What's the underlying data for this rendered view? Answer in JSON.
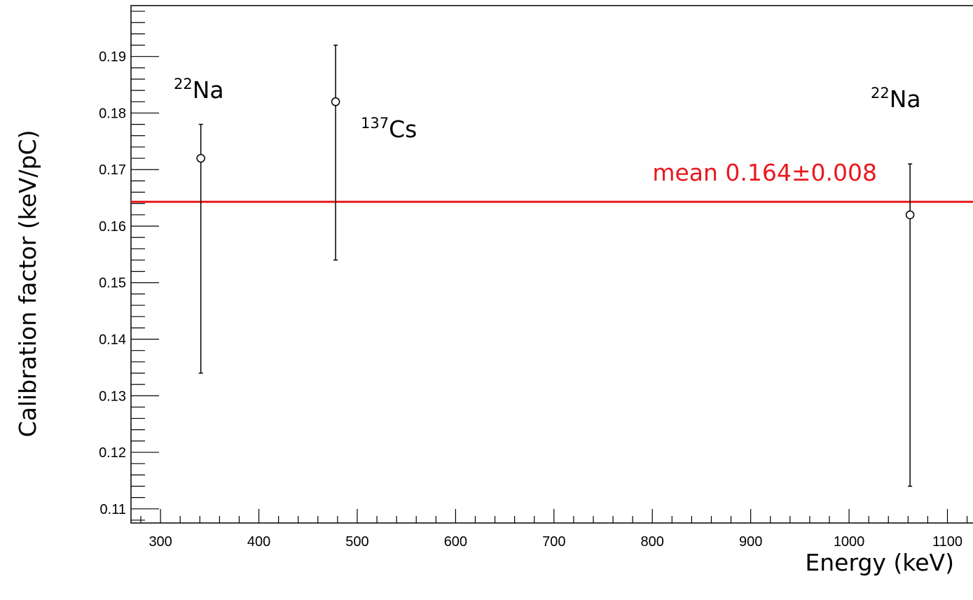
{
  "chart_data": {
    "type": "scatter",
    "xlabel": "Energy (keV)",
    "ylabel": "Calibration factor (keV/pC)",
    "xlim": [
      270,
      1126
    ],
    "ylim": [
      0.1075,
      0.199
    ],
    "x_ticks": [
      300,
      400,
      500,
      600,
      700,
      800,
      900,
      1000,
      1100
    ],
    "x_tick_labels": [
      "300",
      "400",
      "500",
      "600",
      "700",
      "800",
      "900",
      "1000",
      "1100"
    ],
    "y_ticks": [
      0.11,
      0.12,
      0.13,
      0.14,
      0.15,
      0.16,
      0.17,
      0.18,
      0.19
    ],
    "y_tick_labels": [
      "0.11",
      "0.12",
      "0.13",
      "0.14",
      "0.15",
      "0.16",
      "0.17",
      "0.18",
      "0.19"
    ],
    "grid": false,
    "series": [
      {
        "points": [
          {
            "x": 341,
            "y": 0.172,
            "y_low": 0.134,
            "y_high": 0.178
          },
          {
            "x": 478,
            "y": 0.182,
            "y_low": 0.154,
            "y_high": 0.192
          },
          {
            "x": 1062,
            "y": 0.162,
            "y_low": 0.114,
            "y_high": 0.171
          }
        ]
      }
    ],
    "mean_line": {
      "y": 0.1643,
      "color": "#e8191e"
    },
    "annotations": [
      {
        "isotope": "22",
        "element": "Na",
        "x": 341
      },
      {
        "isotope": "137",
        "element": "Cs",
        "x": 478
      },
      {
        "isotope": "22",
        "element": "Na",
        "x": 1062
      }
    ],
    "mean_label": "mean 0.164±0.008"
  }
}
